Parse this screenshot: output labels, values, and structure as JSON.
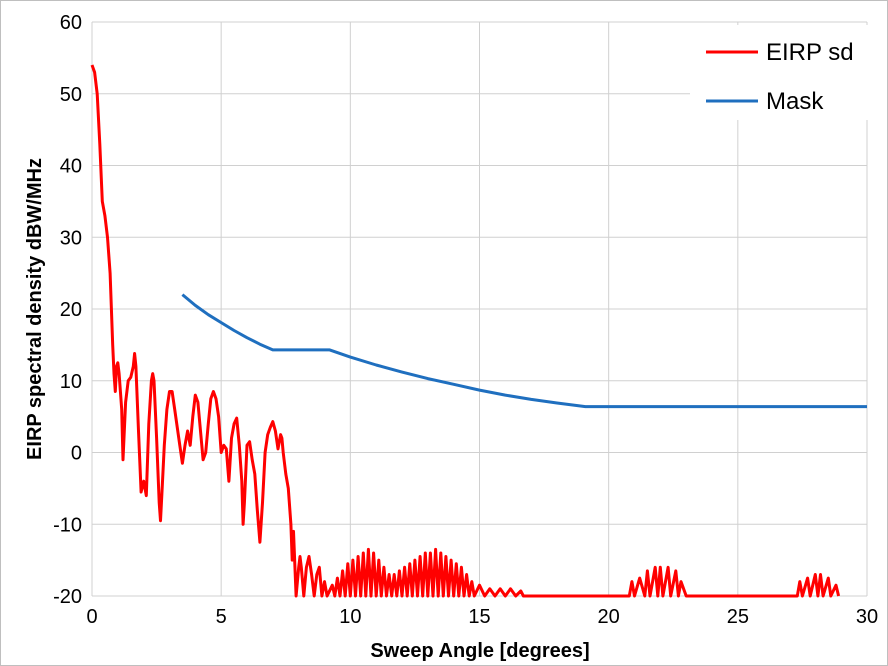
{
  "chart_data": {
    "type": "line",
    "title": "",
    "xlabel": "Sweep Angle [degrees]",
    "ylabel": "EIRP spectral density dBW/MHz",
    "xlim": [
      0,
      30
    ],
    "ylim": [
      -20,
      60
    ],
    "x_ticks": [
      0,
      5,
      10,
      15,
      20,
      25,
      30
    ],
    "y_ticks": [
      -20,
      -10,
      0,
      10,
      20,
      30,
      40,
      50,
      60
    ],
    "grid": true,
    "legend_position": "top-right",
    "series": [
      {
        "name": "EIRP sd",
        "color": "#ff0000",
        "points": [
          [
            0.0,
            54
          ],
          [
            0.1,
            53
          ],
          [
            0.2,
            50
          ],
          [
            0.3,
            43
          ],
          [
            0.4,
            35
          ],
          [
            0.5,
            33
          ],
          [
            0.6,
            30
          ],
          [
            0.7,
            25
          ],
          [
            0.8,
            15
          ],
          [
            0.85,
            11
          ],
          [
            0.9,
            8.5
          ],
          [
            0.95,
            12
          ],
          [
            1.0,
            12.5
          ],
          [
            1.05,
            11
          ],
          [
            1.15,
            6
          ],
          [
            1.2,
            -1
          ],
          [
            1.3,
            7
          ],
          [
            1.4,
            10
          ],
          [
            1.5,
            10.5
          ],
          [
            1.6,
            12
          ],
          [
            1.65,
            13.8
          ],
          [
            1.7,
            12
          ],
          [
            1.8,
            3
          ],
          [
            1.9,
            -5.5
          ],
          [
            2.0,
            -4
          ],
          [
            2.1,
            -6
          ],
          [
            2.2,
            4
          ],
          [
            2.3,
            10
          ],
          [
            2.35,
            11
          ],
          [
            2.4,
            10
          ],
          [
            2.5,
            2
          ],
          [
            2.6,
            -7
          ],
          [
            2.65,
            -9.5
          ],
          [
            2.7,
            -6
          ],
          [
            2.8,
            1
          ],
          [
            2.9,
            6
          ],
          [
            3.0,
            8.5
          ],
          [
            3.1,
            8.5
          ],
          [
            3.2,
            6
          ],
          [
            3.4,
            1
          ],
          [
            3.5,
            -1.5
          ],
          [
            3.6,
            1
          ],
          [
            3.7,
            3
          ],
          [
            3.8,
            1
          ],
          [
            3.9,
            5
          ],
          [
            4.0,
            8
          ],
          [
            4.1,
            7
          ],
          [
            4.2,
            3
          ],
          [
            4.3,
            -1
          ],
          [
            4.4,
            0
          ],
          [
            4.5,
            4
          ],
          [
            4.6,
            7.5
          ],
          [
            4.7,
            8.5
          ],
          [
            4.8,
            7.5
          ],
          [
            4.9,
            5
          ],
          [
            5.0,
            0
          ],
          [
            5.1,
            1
          ],
          [
            5.2,
            0.5
          ],
          [
            5.3,
            -4
          ],
          [
            5.4,
            2
          ],
          [
            5.5,
            4
          ],
          [
            5.6,
            4.8
          ],
          [
            5.7,
            1
          ],
          [
            5.8,
            -4
          ],
          [
            5.85,
            -10
          ],
          [
            5.9,
            -7
          ],
          [
            6.0,
            1
          ],
          [
            6.1,
            1.5
          ],
          [
            6.2,
            -1
          ],
          [
            6.3,
            -3
          ],
          [
            6.4,
            -8
          ],
          [
            6.5,
            -12.5
          ],
          [
            6.6,
            -7
          ],
          [
            6.7,
            0
          ],
          [
            6.8,
            2.5
          ],
          [
            6.9,
            3.5
          ],
          [
            7.0,
            4.3
          ],
          [
            7.1,
            3
          ],
          [
            7.2,
            0.5
          ],
          [
            7.3,
            2.5
          ],
          [
            7.35,
            2
          ],
          [
            7.4,
            0
          ],
          [
            7.5,
            -3
          ],
          [
            7.6,
            -5
          ],
          [
            7.7,
            -10
          ],
          [
            7.75,
            -15
          ],
          [
            7.8,
            -11
          ],
          [
            7.9,
            -20
          ],
          [
            8.0,
            -16
          ],
          [
            8.05,
            -14.5
          ],
          [
            8.1,
            -16
          ],
          [
            8.2,
            -20
          ],
          [
            8.3,
            -16
          ],
          [
            8.4,
            -14.5
          ],
          [
            8.5,
            -17
          ],
          [
            8.6,
            -20
          ],
          [
            8.7,
            -17
          ],
          [
            8.8,
            -16
          ],
          [
            8.9,
            -20
          ],
          [
            9.0,
            -18
          ],
          [
            9.1,
            -20
          ],
          [
            9.3,
            -18.5
          ],
          [
            9.4,
            -20
          ],
          [
            9.5,
            -17.5
          ],
          [
            9.6,
            -20
          ],
          [
            9.7,
            -16.5
          ],
          [
            9.8,
            -20
          ],
          [
            9.9,
            -15.5
          ],
          [
            10.0,
            -20
          ],
          [
            10.1,
            -15
          ],
          [
            10.2,
            -20
          ],
          [
            10.3,
            -14.5
          ],
          [
            10.4,
            -20
          ],
          [
            10.5,
            -14
          ],
          [
            10.6,
            -20
          ],
          [
            10.7,
            -13.5
          ],
          [
            10.8,
            -20
          ],
          [
            10.9,
            -14
          ],
          [
            11.0,
            -20
          ],
          [
            11.1,
            -15
          ],
          [
            11.2,
            -20
          ],
          [
            11.3,
            -16
          ],
          [
            11.4,
            -20
          ],
          [
            11.5,
            -17
          ],
          [
            11.6,
            -20
          ],
          [
            11.7,
            -17
          ],
          [
            11.8,
            -20
          ],
          [
            11.9,
            -16.5
          ],
          [
            12.0,
            -20
          ],
          [
            12.1,
            -16
          ],
          [
            12.2,
            -20
          ],
          [
            12.3,
            -15.5
          ],
          [
            12.4,
            -20
          ],
          [
            12.5,
            -15
          ],
          [
            12.6,
            -20
          ],
          [
            12.7,
            -14.5
          ],
          [
            12.8,
            -20
          ],
          [
            12.9,
            -14
          ],
          [
            13.0,
            -20
          ],
          [
            13.1,
            -14
          ],
          [
            13.2,
            -20
          ],
          [
            13.3,
            -13.5
          ],
          [
            13.4,
            -20
          ],
          [
            13.5,
            -14
          ],
          [
            13.6,
            -20
          ],
          [
            13.7,
            -14.5
          ],
          [
            13.8,
            -20
          ],
          [
            13.9,
            -15
          ],
          [
            14.0,
            -20
          ],
          [
            14.1,
            -15.5
          ],
          [
            14.2,
            -20
          ],
          [
            14.3,
            -16
          ],
          [
            14.4,
            -20
          ],
          [
            14.5,
            -17
          ],
          [
            14.6,
            -20
          ],
          [
            14.7,
            -18
          ],
          [
            14.8,
            -20
          ],
          [
            15.0,
            -18.5
          ],
          [
            15.2,
            -20
          ],
          [
            15.4,
            -19
          ],
          [
            15.6,
            -20
          ],
          [
            15.8,
            -19
          ],
          [
            16.0,
            -20
          ],
          [
            16.2,
            -19
          ],
          [
            16.4,
            -20
          ],
          [
            16.6,
            -19.3
          ],
          [
            16.7,
            -20
          ],
          [
            20.8,
            -20
          ],
          [
            20.9,
            -18
          ],
          [
            21.0,
            -20
          ],
          [
            21.2,
            -17.5
          ],
          [
            21.4,
            -20
          ],
          [
            21.5,
            -16.5
          ],
          [
            21.6,
            -20
          ],
          [
            21.8,
            -16
          ],
          [
            21.9,
            -20
          ],
          [
            22.0,
            -16
          ],
          [
            22.1,
            -20
          ],
          [
            22.3,
            -16
          ],
          [
            22.4,
            -20
          ],
          [
            22.6,
            -16.5
          ],
          [
            22.7,
            -20
          ],
          [
            22.8,
            -18
          ],
          [
            23.0,
            -20
          ],
          [
            27.3,
            -20
          ],
          [
            27.4,
            -18
          ],
          [
            27.5,
            -20
          ],
          [
            27.7,
            -17.5
          ],
          [
            27.8,
            -20
          ],
          [
            28.0,
            -17
          ],
          [
            28.1,
            -20
          ],
          [
            28.2,
            -17
          ],
          [
            28.3,
            -20
          ],
          [
            28.5,
            -17.5
          ],
          [
            28.6,
            -20
          ],
          [
            28.8,
            -18.5
          ],
          [
            28.9,
            -20
          ]
        ]
      },
      {
        "name": "Mask",
        "color": "#1f6fbf",
        "points": [
          [
            3.5,
            22
          ],
          [
            4.0,
            20.5
          ],
          [
            4.5,
            19.2
          ],
          [
            5.0,
            18.1
          ],
          [
            5.5,
            17.0
          ],
          [
            6.0,
            16.0
          ],
          [
            6.5,
            15.1
          ],
          [
            7.0,
            14.3
          ],
          [
            9.2,
            14.3
          ],
          [
            10.0,
            13.3
          ],
          [
            11.0,
            12.2
          ],
          [
            12.0,
            11.2
          ],
          [
            13.0,
            10.3
          ],
          [
            14.0,
            9.5
          ],
          [
            15.0,
            8.7
          ],
          [
            16.0,
            8.0
          ],
          [
            17.0,
            7.4
          ],
          [
            18.0,
            6.9
          ],
          [
            19.1,
            6.4
          ],
          [
            30.0,
            6.4
          ]
        ]
      }
    ]
  }
}
